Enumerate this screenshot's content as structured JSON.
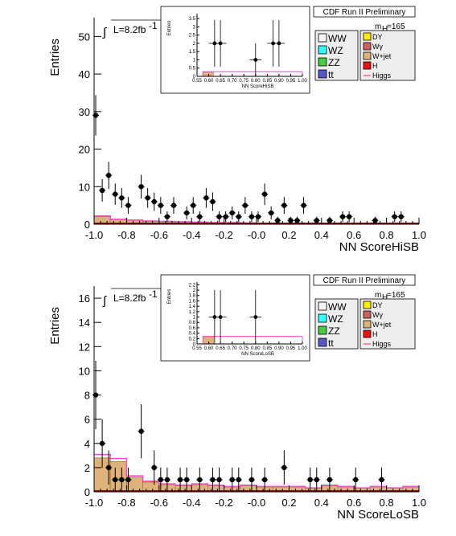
{
  "chart_data": [
    {
      "type": "scatter",
      "title": "CDF Run II Preliminary",
      "lumi_label": "L=8.2fb",
      "lumi_exp": "-1",
      "mass_label": "m",
      "mass_sub": "H",
      "mass_value": "=165",
      "xlabel": "NN ScoreHiSB",
      "ylabel": "Entries",
      "xlim": [
        -1.0,
        1.0
      ],
      "ylim": [
        0,
        55
      ],
      "xticks": [
        "-1.0",
        "-0.8",
        "-0.6",
        "-0.4",
        "-0.2",
        "-0.0",
        "0.2",
        "0.4",
        "0.6",
        "0.8",
        "1.0"
      ],
      "yticks": [
        "0",
        "10",
        "20",
        "30",
        "40",
        "50"
      ],
      "points": {
        "x": [
          -0.99,
          -0.95,
          -0.91,
          -0.87,
          -0.83,
          -0.79,
          -0.71,
          -0.67,
          -0.63,
          -0.59,
          -0.55,
          -0.51,
          -0.43,
          -0.39,
          -0.35,
          -0.31,
          -0.27,
          -0.23,
          -0.19,
          -0.15,
          -0.11,
          -0.07,
          -0.03,
          0.01,
          0.05,
          0.09,
          0.13,
          0.17,
          0.21,
          0.25,
          0.29,
          0.37,
          0.45,
          0.53,
          0.57,
          0.73,
          0.85,
          0.89
        ],
        "y": [
          29,
          9,
          13,
          8,
          7,
          5,
          10,
          7,
          6,
          5,
          2,
          5,
          3,
          5,
          2,
          7,
          6,
          2,
          2,
          3,
          2,
          5,
          2,
          2,
          8,
          3,
          1,
          5,
          1,
          1,
          5,
          1,
          1,
          2,
          2,
          1,
          2,
          2
        ]
      },
      "background_level": [
        2,
        1.2,
        1,
        0.8,
        0.7,
        0.6,
        0.5,
        0.4,
        0.4,
        0.3
      ],
      "inset": {
        "xlabel": "NN ScoreHiSB",
        "ylabel": "Entries",
        "xlim": [
          0.55,
          1.0
        ],
        "ylim": [
          0,
          3.8
        ],
        "xticks": [
          "0.55",
          "0.60",
          "0.65",
          "0.70",
          "0.75",
          "0.80",
          "0.85",
          "0.90",
          "0.95",
          "1.00"
        ],
        "yticks": [
          "0",
          "0.5",
          "1",
          "1.5",
          "2",
          "2.5",
          "3",
          "3.5"
        ],
        "points": {
          "x": [
            0.625,
            0.65,
            0.8,
            0.875,
            0.9
          ],
          "y": [
            2,
            2,
            1,
            2,
            2
          ]
        }
      }
    },
    {
      "type": "scatter",
      "title": "CDF Run II Preliminary",
      "lumi_label": "L=8.2fb",
      "lumi_exp": "-1",
      "mass_label": "m",
      "mass_sub": "H",
      "mass_value": "=165",
      "xlabel": "NN ScoreLoSB",
      "ylabel": "Entries",
      "xlim": [
        -1.0,
        1.0
      ],
      "ylim": [
        0,
        17
      ],
      "xticks": [
        "-1.0",
        "-0.8",
        "-0.6",
        "-0.4",
        "-0.2",
        "-0.0",
        "0.2",
        "0.4",
        "0.6",
        "0.8",
        "1.0"
      ],
      "yticks": [
        "0",
        "2",
        "4",
        "6",
        "8",
        "10",
        "12",
        "14",
        "16"
      ],
      "points": {
        "x": [
          -0.99,
          -0.95,
          -0.91,
          -0.87,
          -0.83,
          -0.79,
          -0.71,
          -0.63,
          -0.59,
          -0.55,
          -0.47,
          -0.43,
          -0.35,
          -0.27,
          -0.23,
          -0.15,
          -0.11,
          -0.03,
          0.05,
          0.17,
          0.33,
          0.37,
          0.45,
          0.61,
          0.77
        ],
        "y": [
          8,
          4,
          2,
          1,
          1,
          1,
          5,
          2,
          1,
          1,
          1,
          1,
          1,
          1,
          1,
          1,
          1,
          1,
          1,
          2,
          1,
          1,
          1,
          1,
          1
        ]
      },
      "background_level": [
        2.8,
        2.5,
        1.2,
        0.8,
        0.6,
        0.5,
        0.6,
        0.5,
        0.4,
        0.5,
        0.4,
        0.4,
        0.4,
        0.3,
        0.5,
        0.4,
        0.3,
        0.4,
        0.3,
        0.4
      ],
      "inset": {
        "xlabel": "NN ScoreLoSB",
        "ylabel": "Entries",
        "xlim": [
          0.55,
          1.0
        ],
        "ylim": [
          0,
          2.3
        ],
        "xticks": [
          "0.55",
          "0.60",
          "0.65",
          "0.70",
          "0.75",
          "0.80",
          "0.85",
          "0.90",
          "0.95",
          "1.00"
        ],
        "yticks": [
          "0",
          "0.2",
          "0.4",
          "0.6",
          "0.8",
          "1",
          "1.2",
          "1.4",
          "1.6",
          "1.8",
          "2",
          "2.2"
        ],
        "points": {
          "x": [
            0.625,
            0.65,
            0.8
          ],
          "y": [
            1,
            1,
            1
          ]
        }
      }
    }
  ],
  "legend": {
    "left": [
      {
        "label": "WW",
        "color": "#f4f4f4"
      },
      {
        "label": "WZ",
        "color": "#33ffff"
      },
      {
        "label": "ZZ",
        "color": "#44cc44"
      },
      {
        "label": "tt",
        "color": "#5555cc"
      }
    ],
    "right": [
      {
        "label": "DY",
        "color": "#ffee00"
      },
      {
        "label": "Wγ",
        "color": "#d06060"
      },
      {
        "label": "W+jet",
        "color": "#ddb27c"
      },
      {
        "label": "H",
        "color": "#ee1111"
      },
      {
        "label": "Higgs",
        "color": "#ff4477"
      }
    ]
  }
}
